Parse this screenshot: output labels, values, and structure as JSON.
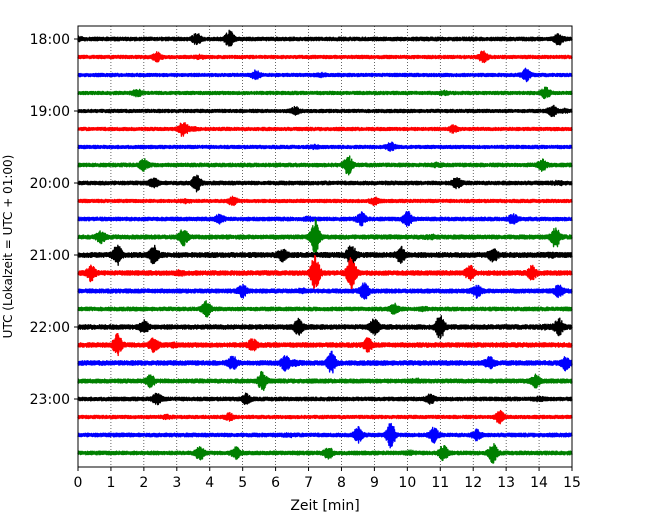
{
  "chart_data": {
    "type": "line",
    "title": "",
    "xlabel": "Zeit  [min]",
    "ylabel": "UTC (Lokalzeit = UTC + 01:00)",
    "xlim": [
      0,
      15
    ],
    "x_ticks": [
      0,
      1,
      2,
      3,
      4,
      5,
      6,
      7,
      8,
      9,
      10,
      11,
      12,
      13,
      14,
      15
    ],
    "x_tick_labels": [
      "0",
      "1",
      "2",
      "3",
      "4",
      "5",
      "6",
      "7",
      "8",
      "9",
      "10",
      "11",
      "12",
      "13",
      "14",
      "15"
    ],
    "y_tick_labels": [
      "18:00",
      "19:00",
      "20:00",
      "21:00",
      "22:00",
      "23:00"
    ],
    "trace_minutes": 15,
    "grid": "vertical dotted",
    "colors": [
      "#000000",
      "#ff0000",
      "#0000ff",
      "#008000"
    ],
    "series": [
      {
        "start": "18:00",
        "color": "#000000",
        "amplitude": 0.9,
        "events": [
          [
            4.6,
            1.2
          ],
          [
            3.6,
            0.8
          ],
          [
            14.6,
            0.8
          ]
        ]
      },
      {
        "start": "18:15",
        "color": "#ff0000",
        "amplitude": 0.8,
        "events": [
          [
            12.3,
            0.8
          ],
          [
            2.4,
            0.6
          ]
        ]
      },
      {
        "start": "18:30",
        "color": "#0000ff",
        "amplitude": 0.8,
        "events": [
          [
            13.6,
            0.9
          ],
          [
            5.4,
            0.6
          ]
        ]
      },
      {
        "start": "18:45",
        "color": "#008000",
        "amplitude": 0.8,
        "events": [
          [
            14.2,
            0.8
          ],
          [
            1.8,
            0.5
          ]
        ]
      },
      {
        "start": "19:00",
        "color": "#000000",
        "amplitude": 0.8,
        "events": [
          [
            14.4,
            0.8
          ],
          [
            6.6,
            0.5
          ]
        ]
      },
      {
        "start": "19:15",
        "color": "#ff0000",
        "amplitude": 0.8,
        "events": [
          [
            3.2,
            1.2
          ],
          [
            11.4,
            0.5
          ]
        ]
      },
      {
        "start": "19:30",
        "color": "#0000ff",
        "amplitude": 0.8,
        "events": [
          [
            9.5,
            0.6
          ]
        ]
      },
      {
        "start": "19:45",
        "color": "#008000",
        "amplitude": 0.9,
        "events": [
          [
            8.2,
            1.4
          ],
          [
            2.0,
            0.8
          ],
          [
            14.1,
            0.8
          ]
        ]
      },
      {
        "start": "20:00",
        "color": "#000000",
        "amplitude": 0.9,
        "events": [
          [
            3.6,
            1.2
          ],
          [
            11.5,
            0.8
          ],
          [
            2.3,
            0.6
          ]
        ]
      },
      {
        "start": "20:15",
        "color": "#ff0000",
        "amplitude": 0.8,
        "events": [
          [
            4.7,
            0.6
          ],
          [
            9.0,
            0.5
          ]
        ]
      },
      {
        "start": "20:30",
        "color": "#0000ff",
        "amplitude": 0.9,
        "events": [
          [
            10.0,
            1.2
          ],
          [
            8.6,
            0.9
          ],
          [
            4.3,
            0.6
          ],
          [
            13.2,
            0.7
          ]
        ]
      },
      {
        "start": "20:45",
        "color": "#008000",
        "amplitude": 1.0,
        "events": [
          [
            7.2,
            2.6
          ],
          [
            3.2,
            1.2
          ],
          [
            14.5,
            1.6
          ],
          [
            0.7,
            0.8
          ]
        ]
      },
      {
        "start": "21:00",
        "color": "#000000",
        "amplitude": 1.2,
        "events": [
          [
            1.2,
            1.4
          ],
          [
            2.3,
            1.3
          ],
          [
            8.3,
            1.6
          ],
          [
            9.8,
            1.1
          ],
          [
            12.6,
            1.0
          ],
          [
            6.2,
            0.8
          ]
        ]
      },
      {
        "start": "21:15",
        "color": "#ff0000",
        "amplitude": 1.1,
        "events": [
          [
            7.2,
            2.8
          ],
          [
            8.3,
            2.6
          ],
          [
            0.4,
            1.1
          ],
          [
            11.9,
            1.1
          ],
          [
            13.8,
            1.0
          ]
        ]
      },
      {
        "start": "21:30",
        "color": "#0000ff",
        "amplitude": 1.0,
        "events": [
          [
            8.7,
            1.3
          ],
          [
            5.0,
            0.9
          ],
          [
            12.1,
            0.9
          ],
          [
            14.6,
            0.8
          ]
        ]
      },
      {
        "start": "21:45",
        "color": "#008000",
        "amplitude": 0.9,
        "events": [
          [
            3.9,
            1.1
          ],
          [
            9.6,
            0.7
          ]
        ]
      },
      {
        "start": "22:00",
        "color": "#000000",
        "amplitude": 1.1,
        "events": [
          [
            11.0,
            1.8
          ],
          [
            6.7,
            1.2
          ],
          [
            9.0,
            1.1
          ],
          [
            2.0,
            0.9
          ],
          [
            14.6,
            1.2
          ]
        ]
      },
      {
        "start": "22:15",
        "color": "#ff0000",
        "amplitude": 1.1,
        "events": [
          [
            1.2,
            1.6
          ],
          [
            2.3,
            1.0
          ],
          [
            8.8,
            0.9
          ],
          [
            5.3,
            0.8
          ]
        ]
      },
      {
        "start": "22:30",
        "color": "#0000ff",
        "amplitude": 1.1,
        "events": [
          [
            7.7,
            1.6
          ],
          [
            6.3,
            1.1
          ],
          [
            4.7,
            0.9
          ],
          [
            12.5,
            1.0
          ],
          [
            14.8,
            1.0
          ]
        ]
      },
      {
        "start": "22:45",
        "color": "#008000",
        "amplitude": 1.0,
        "events": [
          [
            5.6,
            1.4
          ],
          [
            2.2,
            0.8
          ],
          [
            13.9,
            0.9
          ]
        ]
      },
      {
        "start": "23:00",
        "color": "#000000",
        "amplitude": 0.9,
        "events": [
          [
            2.4,
            0.8
          ],
          [
            5.1,
            0.7
          ],
          [
            10.7,
            0.6
          ]
        ]
      },
      {
        "start": "23:15",
        "color": "#ff0000",
        "amplitude": 0.8,
        "events": [
          [
            12.8,
            0.9
          ],
          [
            4.6,
            0.5
          ]
        ]
      },
      {
        "start": "23:30",
        "color": "#0000ff",
        "amplitude": 0.9,
        "events": [
          [
            9.5,
            1.9
          ],
          [
            8.5,
            1.1
          ],
          [
            10.8,
            1.1
          ],
          [
            12.1,
            0.7
          ]
        ]
      },
      {
        "start": "23:45",
        "color": "#008000",
        "amplitude": 0.9,
        "events": [
          [
            12.6,
            1.4
          ],
          [
            11.1,
            1.1
          ],
          [
            3.7,
            1.0
          ],
          [
            4.8,
            0.8
          ],
          [
            7.6,
            0.8
          ]
        ]
      }
    ]
  }
}
